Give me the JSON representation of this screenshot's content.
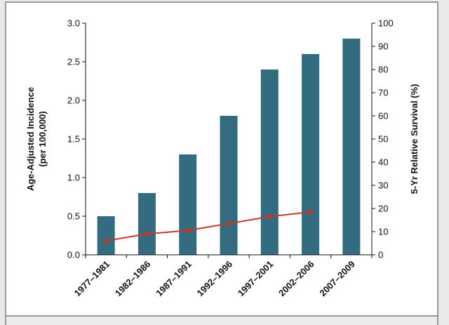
{
  "chart_data": {
    "type": "bar",
    "categories": [
      "1977–1981",
      "1982–1986",
      "1987–1991",
      "1992–1996",
      "1997–2001",
      "2002–2006",
      "2007–2009"
    ],
    "series": [
      {
        "type": "bar",
        "axis": "left",
        "color": "#336b80",
        "values": [
          0.5,
          0.8,
          1.3,
          1.8,
          2.4,
          2.6,
          2.8
        ]
      },
      {
        "type": "line",
        "axis": "right",
        "color": "#c0392b",
        "values": [
          6,
          9,
          10.5,
          13.5,
          16.5,
          18.5,
          null
        ]
      }
    ],
    "ylabel": "Age-Adjusted Incidence (per 100,000)",
    "ylabel_lines": [
      "Age-Adjusted Incidence",
      "(per 100,000)"
    ],
    "ylim": [
      0,
      3.0
    ],
    "yticks": [
      "0.0",
      "0.5",
      "1.0",
      "1.5",
      "2.0",
      "2.5",
      "3.0"
    ],
    "y2label": "5-Yr Relative Survival (%)",
    "y2lim": [
      0,
      100
    ],
    "y2ticks": [
      "0",
      "10",
      "20",
      "30",
      "40",
      "50",
      "60",
      "70",
      "80",
      "90",
      "100"
    ],
    "grid": false,
    "legend": "none"
  }
}
